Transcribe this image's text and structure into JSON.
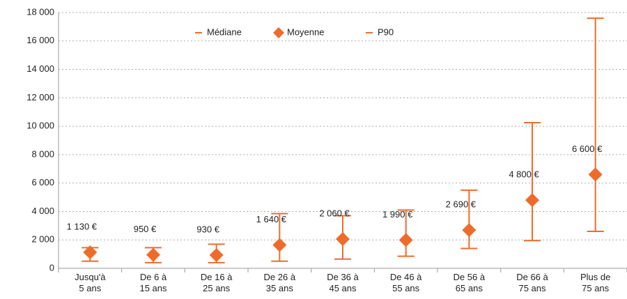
{
  "chart_data": {
    "type": "errorbar",
    "categories": [
      "Jusqu'à\n5 ans",
      "De 6 à\n15 ans",
      "De 16 à\n25 ans",
      "De 26 à\n35 ans",
      "De 36 à\n45 ans",
      "De 46 à\n55 ans",
      "De 56 à\n65 ans",
      "De 66 à\n75 ans",
      "Plus de\n75 ans"
    ],
    "series": [
      {
        "name": "Médiane",
        "color": "#ee6c2b",
        "values": [
          500,
          400,
          400,
          500,
          650,
          850,
          1400,
          1950,
          2600
        ]
      },
      {
        "name": "Moyenne",
        "color": "#ee6c2b",
        "values": [
          1130,
          950,
          930,
          1640,
          2060,
          1990,
          2690,
          4800,
          6600
        ],
        "value_labels": [
          "1 130 €",
          "950 €",
          "930 €",
          "1 640 €",
          "2 060 €",
          "1 990 €",
          "2 690 €",
          "4 800 €",
          "6 600 €"
        ]
      },
      {
        "name": "P90",
        "color": "#ee6c2b",
        "values": [
          1450,
          1450,
          1700,
          3850,
          3700,
          4100,
          5500,
          10250,
          17600
        ]
      }
    ],
    "ylim": [
      0,
      18000
    ],
    "yticks": [
      0,
      {
        "value": 2000,
        "label": "2 000"
      },
      {
        "value": 4000,
        "label": "4 000"
      },
      {
        "value": 6000,
        "label": "6 000"
      },
      {
        "value": 8000,
        "label": "8 000"
      },
      {
        "value": 10000,
        "label": "10 000"
      },
      {
        "value": 12000,
        "label": "12 000"
      },
      {
        "value": 14000,
        "label": "14 000"
      },
      {
        "value": 16000,
        "label": "16 000"
      },
      {
        "value": 18000,
        "label": "18 000"
      }
    ],
    "grid": true
  }
}
